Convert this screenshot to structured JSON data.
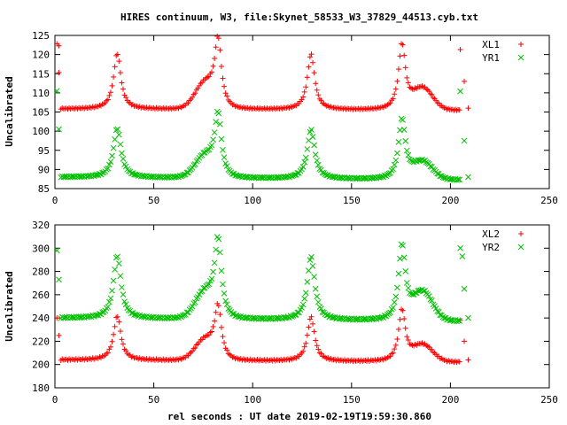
{
  "title": "HIRES continuum, W3, file:Skynet_58533_W3_37829_44513.cyb.txt",
  "xlabel": "rel seconds : UT date 2019-02-19T19:59:30.860",
  "chart_data": [
    {
      "type": "scatter",
      "ylabel": "Uncalibrated",
      "xlim": [
        0,
        250
      ],
      "ylim": [
        85,
        125
      ],
      "xticks": [
        0,
        50,
        100,
        150,
        200,
        250
      ],
      "yticks": [
        85,
        90,
        95,
        100,
        105,
        110,
        115,
        120,
        125
      ],
      "legend_position": "top-right",
      "series": [
        {
          "name": "XL1",
          "marker": "+",
          "color": "#ff0000",
          "baseline": 105.8,
          "drift": -0.4,
          "scale": 1.0,
          "peaks": [
            {
              "center": 31.5,
              "amp": 14.5,
              "width": 2.2
            },
            {
              "center": 82.5,
              "amp": 16.5,
              "width": 2.0
            },
            {
              "center": 129.5,
              "amp": 14.5,
              "width": 2.2
            },
            {
              "center": 175.5,
              "amp": 17.0,
              "width": 2.1
            }
          ],
          "bumps": [
            {
              "center": 76,
              "amp": 6.5,
              "width": 5
            },
            {
              "center": 186,
              "amp": 5.5,
              "width": 5
            }
          ],
          "outliers": [
            [
              1,
              122.8
            ],
            [
              2,
              122.3
            ],
            [
              2,
              115.3
            ],
            [
              205,
              121.3
            ],
            [
              207,
              113.0
            ],
            [
              209,
              106.0
            ]
          ]
        },
        {
          "name": "YR1",
          "marker": "×",
          "color": "#00c000",
          "baseline": 88.0,
          "drift": -0.8,
          "scale": 1.0,
          "peaks": [
            {
              "center": 31.5,
              "amp": 12.8,
              "width": 2.3
            },
            {
              "center": 82.5,
              "amp": 15.2,
              "width": 2.0
            },
            {
              "center": 129.5,
              "amp": 12.8,
              "width": 2.3
            },
            {
              "center": 175.5,
              "amp": 15.6,
              "width": 2.1
            }
          ],
          "bumps": [
            {
              "center": 76,
              "amp": 5.5,
              "width": 5
            },
            {
              "center": 186,
              "amp": 4.5,
              "width": 5
            }
          ],
          "outliers": [
            [
              1,
              110.5
            ],
            [
              2,
              100.5
            ],
            [
              205,
              110.4
            ],
            [
              207,
              97.5
            ],
            [
              209,
              88.0
            ]
          ]
        }
      ]
    },
    {
      "type": "scatter",
      "ylabel": "Uncalibrated",
      "xlim": [
        0,
        250
      ],
      "ylim": [
        180,
        320
      ],
      "xticks": [
        0,
        50,
        100,
        150,
        200,
        250
      ],
      "yticks": [
        180,
        200,
        220,
        240,
        260,
        280,
        300,
        320
      ],
      "legend_position": "top-right",
      "series": [
        {
          "name": "XL2",
          "marker": "+",
          "color": "#ff0000",
          "baseline": 204.0,
          "drift": -2.0,
          "scale": 1.0,
          "peaks": [
            {
              "center": 31.5,
              "amp": 38,
              "width": 2.2
            },
            {
              "center": 82.5,
              "amp": 42,
              "width": 2.0
            },
            {
              "center": 129.5,
              "amp": 38,
              "width": 2.2
            },
            {
              "center": 175.5,
              "amp": 44,
              "width": 2.1
            }
          ],
          "bumps": [
            {
              "center": 76,
              "amp": 17,
              "width": 5
            },
            {
              "center": 186,
              "amp": 14,
              "width": 5
            }
          ],
          "outliers": [
            [
              1,
              240
            ],
            [
              2,
              225
            ],
            [
              205,
              238
            ],
            [
              207,
              220
            ],
            [
              209,
              204
            ]
          ]
        },
        {
          "name": "YR2",
          "marker": "×",
          "color": "#00c000",
          "baseline": 240.0,
          "drift": -3.0,
          "scale": 1.0,
          "peaks": [
            {
              "center": 31.5,
              "amp": 54,
              "width": 2.3
            },
            {
              "center": 82.5,
              "amp": 62,
              "width": 2.0
            },
            {
              "center": 129.5,
              "amp": 54,
              "width": 2.3
            },
            {
              "center": 175.5,
              "amp": 64,
              "width": 2.1
            }
          ],
          "bumps": [
            {
              "center": 76,
              "amp": 22,
              "width": 5
            },
            {
              "center": 186,
              "amp": 24,
              "width": 5
            }
          ],
          "outliers": [
            [
              1,
              298
            ],
            [
              2,
              273
            ],
            [
              205,
              300
            ],
            [
              206,
              293
            ],
            [
              207,
              265
            ],
            [
              209,
              240
            ]
          ]
        }
      ]
    }
  ]
}
